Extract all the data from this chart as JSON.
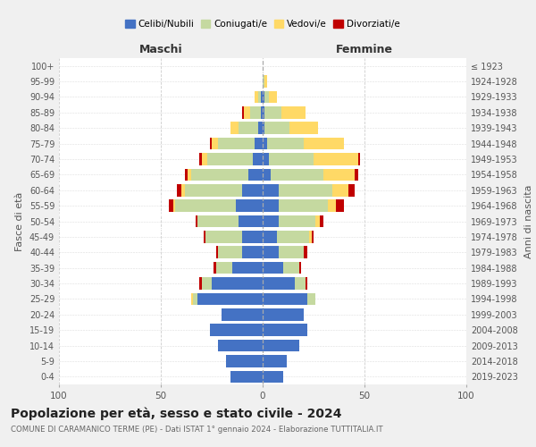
{
  "age_groups": [
    "0-4",
    "5-9",
    "10-14",
    "15-19",
    "20-24",
    "25-29",
    "30-34",
    "35-39",
    "40-44",
    "45-49",
    "50-54",
    "55-59",
    "60-64",
    "65-69",
    "70-74",
    "75-79",
    "80-84",
    "85-89",
    "90-94",
    "95-99",
    "100+"
  ],
  "birth_years": [
    "2019-2023",
    "2014-2018",
    "2009-2013",
    "2004-2008",
    "1999-2003",
    "1994-1998",
    "1989-1993",
    "1984-1988",
    "1979-1983",
    "1974-1978",
    "1969-1973",
    "1964-1968",
    "1959-1963",
    "1954-1958",
    "1949-1953",
    "1944-1948",
    "1939-1943",
    "1934-1938",
    "1929-1933",
    "1924-1928",
    "≤ 1923"
  ],
  "male": {
    "celibi": [
      16,
      18,
      22,
      26,
      20,
      32,
      25,
      15,
      10,
      10,
      12,
      13,
      10,
      7,
      5,
      4,
      2,
      1,
      1,
      0,
      0
    ],
    "coniugati": [
      0,
      0,
      0,
      0,
      0,
      2,
      5,
      8,
      12,
      18,
      20,
      30,
      28,
      28,
      22,
      18,
      10,
      5,
      1,
      0,
      0
    ],
    "vedovi": [
      0,
      0,
      0,
      0,
      0,
      1,
      0,
      0,
      0,
      0,
      0,
      1,
      2,
      2,
      3,
      3,
      4,
      3,
      2,
      0,
      0
    ],
    "divorziati": [
      0,
      0,
      0,
      0,
      0,
      0,
      1,
      1,
      1,
      1,
      1,
      2,
      2,
      1,
      1,
      1,
      0,
      1,
      0,
      0,
      0
    ]
  },
  "female": {
    "nubili": [
      10,
      12,
      18,
      22,
      20,
      22,
      16,
      10,
      8,
      7,
      8,
      8,
      8,
      4,
      3,
      2,
      1,
      1,
      1,
      0,
      0
    ],
    "coniugate": [
      0,
      0,
      0,
      0,
      0,
      4,
      5,
      8,
      12,
      16,
      18,
      24,
      26,
      26,
      22,
      18,
      12,
      8,
      2,
      1,
      0
    ],
    "vedove": [
      0,
      0,
      0,
      0,
      0,
      0,
      0,
      0,
      0,
      1,
      2,
      4,
      8,
      15,
      22,
      20,
      14,
      12,
      4,
      1,
      0
    ],
    "divorziate": [
      0,
      0,
      0,
      0,
      0,
      0,
      1,
      1,
      2,
      1,
      2,
      4,
      3,
      2,
      1,
      0,
      0,
      0,
      0,
      0,
      0
    ]
  },
  "colors": {
    "celibi": "#4472c4",
    "coniugati": "#c5d9a0",
    "vedovi": "#ffd966",
    "divorziati": "#c00000"
  },
  "xlim": 100,
  "title": "Popolazione per età, sesso e stato civile - 2024",
  "subtitle": "COMUNE DI CARAMANICO TERME (PE) - Dati ISTAT 1° gennaio 2024 - Elaborazione TUTTITALIA.IT",
  "ylabel": "Fasce di età",
  "ylabel_right": "Anni di nascita",
  "xlabel_maschi": "Maschi",
  "xlabel_femmine": "Femmine",
  "bg_color": "#f0f0f0",
  "plot_bg": "#ffffff"
}
